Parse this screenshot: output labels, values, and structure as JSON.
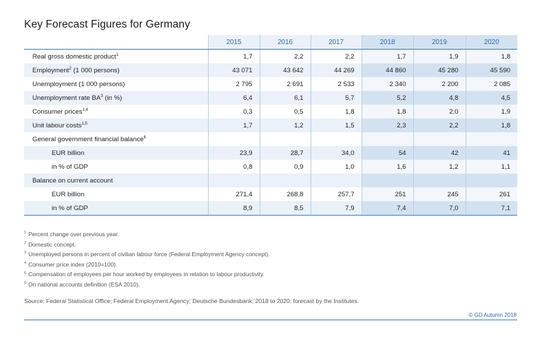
{
  "title": "Key Forecast Figures for Germany",
  "years": [
    "2015",
    "2016",
    "2017",
    "2018",
    "2019",
    "2020"
  ],
  "rows": [
    {
      "label": "Real gross domestic product",
      "sup": "1",
      "values": [
        "1,7",
        "2,2",
        "2,2",
        "1,7",
        "1,9",
        "1,8"
      ]
    },
    {
      "label": "Employment",
      "sup": "2",
      "label_suffix": " (1 000 persons)",
      "values": [
        "43 071",
        "43 642",
        "44 269",
        "44 860",
        "45 280",
        "45 590"
      ]
    },
    {
      "label": "Unemployment (1 000 persons)",
      "sup": "",
      "values": [
        "2 795",
        "2 691",
        "2 533",
        "2 340",
        "2 200",
        "2 085"
      ]
    },
    {
      "label": "Unemployment rate BA",
      "sup": "3",
      "label_suffix": " (in %)",
      "values": [
        "6,4",
        "6,1",
        "5,7",
        "5,2",
        "4,8",
        "4,5"
      ]
    },
    {
      "label": "Consumer prices",
      "sup": "1,4",
      "values": [
        "0,3",
        "0,5",
        "1,8",
        "1,8",
        "2,0",
        "1,9"
      ]
    },
    {
      "label": "Unit labour costs",
      "sup": "1,5",
      "values": [
        "1,7",
        "1,2",
        "1,5",
        "2,3",
        "2,2",
        "1,8"
      ]
    },
    {
      "label": "General government financial balance",
      "sup": "6",
      "values": []
    },
    {
      "label": "EUR billion",
      "sup": "",
      "indent": true,
      "values": [
        "23,9",
        "28,7",
        "34,0",
        "54",
        "42",
        "41"
      ]
    },
    {
      "label": "in % of GDP",
      "sup": "",
      "indent": true,
      "values": [
        "0,8",
        "0,9",
        "1,0",
        "1,6",
        "1,2",
        "1,1"
      ]
    },
    {
      "label": "Balance on current account",
      "sup": "",
      "values": []
    },
    {
      "label": "EUR billion",
      "sup": "",
      "indent": true,
      "values": [
        "271,4",
        "268,8",
        "257,7",
        "251",
        "245",
        "261"
      ]
    },
    {
      "label": "in % of GDP",
      "sup": "",
      "indent": true,
      "values": [
        "8,9",
        "8,5",
        "7,9",
        "7,4",
        "7,0",
        "7,1"
      ]
    }
  ],
  "footnotes": [
    {
      "num": "1",
      "text": "Percent change over previous year."
    },
    {
      "num": "2",
      "text": "Domestic concept."
    },
    {
      "num": "3",
      "text": "Unemployed persons in percent of civilian labour force (Federal Employment Agency concept)."
    },
    {
      "num": "4",
      "text": "Consumer price index (2010=100)."
    },
    {
      "num": "5",
      "text": "Compensation of employees per hour worked by employees in relation to labour productivity."
    },
    {
      "num": "6",
      "text": "On national accounts definition (ESA 2010)."
    }
  ],
  "source": "Source: Federal Statistical Office; Federal Employment Agency; Deutsche Bundesbank; 2018 to 2020: forecast by the Institutes.",
  "copyright": "© GD Autumn 2018",
  "colors": {
    "accent": "#2d6aa8",
    "shade_hist": "#eaf1f8",
    "shade_forecast": "#d3e2f0"
  }
}
